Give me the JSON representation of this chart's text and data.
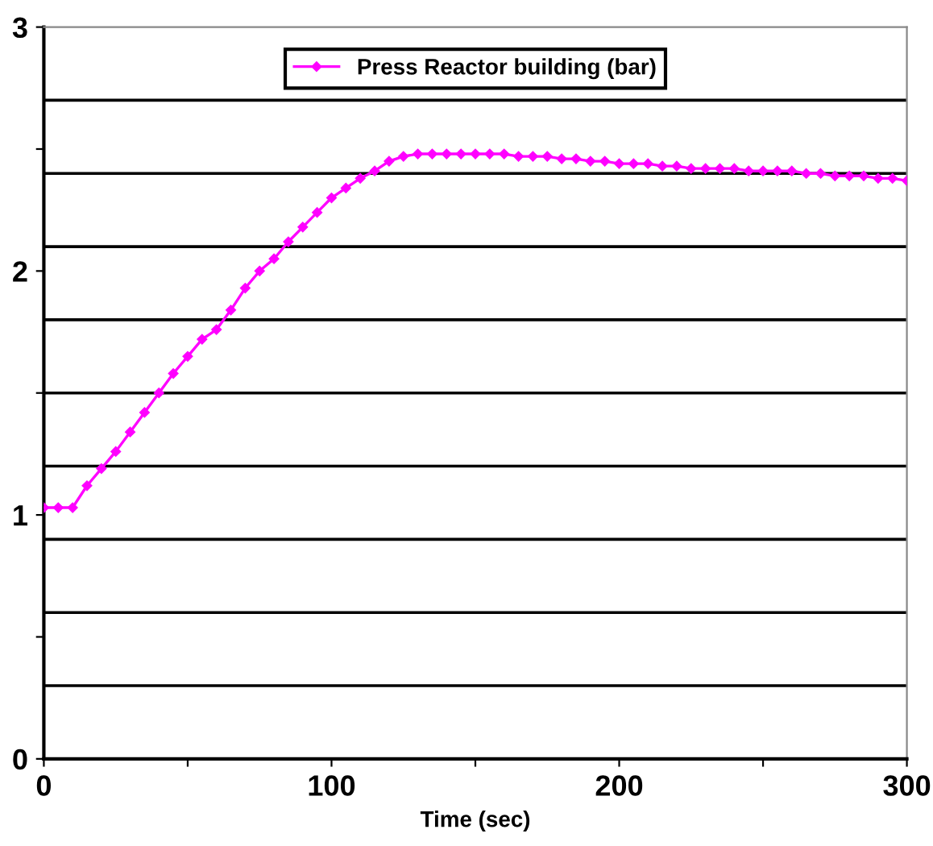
{
  "chart_data": {
    "type": "line",
    "xlabel": "Time (sec)",
    "x": [
      0,
      5,
      10,
      15,
      20,
      25,
      30,
      35,
      40,
      45,
      50,
      55,
      60,
      65,
      70,
      75,
      80,
      85,
      90,
      95,
      100,
      105,
      110,
      115,
      120,
      125,
      130,
      135,
      140,
      145,
      150,
      155,
      160,
      165,
      170,
      175,
      180,
      185,
      190,
      195,
      200,
      205,
      210,
      215,
      220,
      225,
      230,
      235,
      240,
      245,
      250,
      255,
      260,
      265,
      270,
      275,
      280,
      285,
      290,
      295,
      300
    ],
    "series": [
      {
        "name": "Press Reactor building (bar)",
        "color": "#ff00ff",
        "values": [
          1.03,
          1.03,
          1.03,
          1.12,
          1.19,
          1.26,
          1.34,
          1.42,
          1.5,
          1.58,
          1.65,
          1.72,
          1.76,
          1.84,
          1.93,
          2.0,
          2.05,
          2.12,
          2.18,
          2.24,
          2.3,
          2.34,
          2.38,
          2.41,
          2.45,
          2.47,
          2.48,
          2.48,
          2.48,
          2.48,
          2.48,
          2.48,
          2.48,
          2.47,
          2.47,
          2.47,
          2.46,
          2.46,
          2.45,
          2.45,
          2.44,
          2.44,
          2.44,
          2.43,
          2.43,
          2.42,
          2.42,
          2.42,
          2.42,
          2.41,
          2.41,
          2.41,
          2.41,
          2.4,
          2.4,
          2.39,
          2.39,
          2.39,
          2.38,
          2.38,
          2.37
        ]
      }
    ],
    "xlim": [
      0,
      300
    ],
    "xticks": [
      0,
      {
        "value": 50,
        "label": null
      },
      100,
      {
        "value": 150,
        "label": null
      },
      200,
      {
        "value": 250,
        "label": null
      },
      300
    ],
    "ylim": [
      0,
      3
    ],
    "yticks": [
      0,
      {
        "value": 0.5,
        "label": null
      },
      1,
      {
        "value": 1.5,
        "label": null
      },
      2,
      {
        "value": 2.5,
        "label": null
      },
      3
    ],
    "ref_lines": [
      {
        "axis": "y",
        "value": 0.3,
        "color": "#000000"
      },
      {
        "axis": "y",
        "value": 0.6,
        "color": "#000000"
      },
      {
        "axis": "y",
        "value": 0.9,
        "color": "#000000"
      },
      {
        "axis": "y",
        "value": 1.2,
        "color": "#000000"
      },
      {
        "axis": "y",
        "value": 1.5,
        "color": "#000000"
      },
      {
        "axis": "y",
        "value": 1.8,
        "color": "#000000"
      },
      {
        "axis": "y",
        "value": 2.1,
        "color": "#000000"
      },
      {
        "axis": "y",
        "value": 2.4,
        "color": "#000000"
      },
      {
        "axis": "y",
        "value": 2.7,
        "color": "#000000"
      }
    ],
    "grid": false,
    "legend": "top",
    "marker": "diamond",
    "line_style": "solid"
  }
}
